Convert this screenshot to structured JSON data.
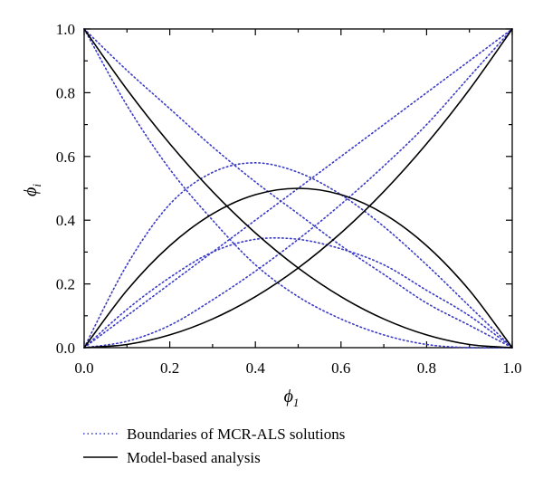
{
  "chart_data": {
    "type": "line",
    "xlabel_main": "ϕ",
    "xlabel_sub": "1",
    "ylabel_main": "ϕ",
    "ylabel_sub": "i",
    "xlim": [
      0,
      1
    ],
    "ylim": [
      0,
      1
    ],
    "x_ticks": [
      "0.0",
      "0.2",
      "0.4",
      "0.6",
      "0.8",
      "1.0"
    ],
    "y_ticks": [
      "0.0",
      "0.2",
      "0.4",
      "0.6",
      "0.8",
      "1.0"
    ],
    "grid": false,
    "legend_placement": "bottom-left, below plot",
    "legend": [
      {
        "label": "Boundaries of MCR-ALS solutions",
        "style": "dotted",
        "color": "#3a3ac8"
      },
      {
        "label": "Model-based analysis",
        "style": "solid",
        "color": "#000000"
      }
    ],
    "x": [
      0,
      0.1,
      0.2,
      0.3,
      0.4,
      0.5,
      0.6,
      0.7,
      0.8,
      0.9,
      1.0
    ],
    "series": [
      {
        "group": "model",
        "style": "solid",
        "values": [
          1.0,
          0.81,
          0.64,
          0.49,
          0.36,
          0.25,
          0.16,
          0.09,
          0.04,
          0.01,
          0.0
        ]
      },
      {
        "group": "model",
        "style": "solid",
        "values": [
          0.0,
          0.18,
          0.32,
          0.42,
          0.48,
          0.5,
          0.48,
          0.42,
          0.32,
          0.18,
          0.0
        ]
      },
      {
        "group": "model",
        "style": "solid",
        "values": [
          0.0,
          0.01,
          0.04,
          0.09,
          0.16,
          0.25,
          0.36,
          0.49,
          0.64,
          0.81,
          1.0
        ]
      },
      {
        "group": "boundary",
        "style": "dotted",
        "values": [
          1.0,
          0.87,
          0.75,
          0.63,
          0.52,
          0.42,
          0.32,
          0.23,
          0.14,
          0.07,
          0.0
        ]
      },
      {
        "group": "boundary",
        "style": "dotted",
        "values": [
          1.0,
          0.76,
          0.56,
          0.4,
          0.26,
          0.16,
          0.09,
          0.04,
          0.01,
          0.0,
          0.0
        ]
      },
      {
        "group": "boundary",
        "style": "dotted",
        "values": [
          0.0,
          0.26,
          0.45,
          0.55,
          0.58,
          0.55,
          0.48,
          0.38,
          0.26,
          0.13,
          0.0
        ]
      },
      {
        "group": "boundary",
        "style": "dotted",
        "values": [
          0.0,
          0.12,
          0.22,
          0.3,
          0.34,
          0.34,
          0.31,
          0.26,
          0.18,
          0.1,
          0.0
        ]
      },
      {
        "group": "boundary",
        "style": "dotted",
        "values": [
          0.0,
          0.02,
          0.07,
          0.15,
          0.24,
          0.34,
          0.45,
          0.57,
          0.7,
          0.85,
          1.0
        ]
      },
      {
        "group": "boundary",
        "style": "dotted",
        "values": [
          0.0,
          0.1,
          0.2,
          0.3,
          0.4,
          0.5,
          0.6,
          0.7,
          0.8,
          0.9,
          1.0
        ]
      }
    ]
  }
}
